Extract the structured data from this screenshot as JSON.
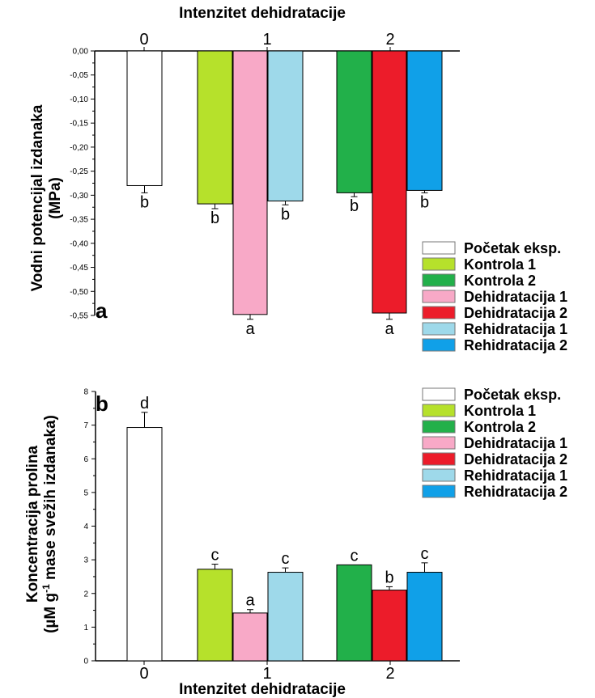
{
  "chart_data": [
    {
      "type": "bar",
      "panel_label": "a",
      "title": "Intenzitet dehidratacije",
      "xlabel": "Intenzitet dehidratacije",
      "ylabel_line1": "Vodni potencijal izdanaka",
      "ylabel_line2": "(MPa)",
      "categories": [
        "0",
        "1",
        "2"
      ],
      "ylim": [
        -0.55,
        0.0
      ],
      "yticks": [
        "0,00",
        "-0,05",
        "-0,10",
        "-0,15",
        "-0,20",
        "-0,25",
        "-0,30",
        "-0,35",
        "-0,40",
        "-0,45",
        "-0,50",
        "-0,55"
      ],
      "bars": [
        {
          "series": "Početak eksp.",
          "category": "0",
          "value": -0.28,
          "error": 0.015,
          "label": "b"
        },
        {
          "series": "Kontrola 1",
          "category": "1",
          "value": -0.318,
          "error": 0.01,
          "label": "b"
        },
        {
          "series": "Dehidratacija 1",
          "category": "1",
          "value": -0.548,
          "error": 0.01,
          "label": "a"
        },
        {
          "series": "Rehidratacija 1",
          "category": "1",
          "value": -0.312,
          "error": 0.008,
          "label": "b"
        },
        {
          "series": "Kontrola 2",
          "category": "2",
          "value": -0.295,
          "error": 0.008,
          "label": "b"
        },
        {
          "series": "Dehidratacija 2",
          "category": "2",
          "value": -0.545,
          "error": 0.013,
          "label": "a"
        },
        {
          "series": "Rehidratacija 2",
          "category": "2",
          "value": -0.29,
          "error": 0.005,
          "label": "b"
        }
      ]
    },
    {
      "type": "bar",
      "panel_label": "b",
      "xlabel": "Intenzitet dehidratacije",
      "ylabel_line1": "Koncentracija prolina",
      "ylabel_line2_pre": "(µM g",
      "ylabel_line2_sup": "-1",
      "ylabel_line2_post": " mase svežih izdanaka)",
      "categories": [
        "0",
        "1",
        "2"
      ],
      "ylim": [
        0,
        8
      ],
      "yticks": [
        "0",
        "1",
        "2",
        "3",
        "4",
        "5",
        "6",
        "7",
        "8"
      ],
      "bars": [
        {
          "series": "Početak eksp.",
          "category": "0",
          "value": 6.93,
          "error": 0.45,
          "label": "d"
        },
        {
          "series": "Kontrola 1",
          "category": "1",
          "value": 2.72,
          "error": 0.15,
          "label": "c"
        },
        {
          "series": "Dehidratacija 1",
          "category": "1",
          "value": 1.42,
          "error": 0.1,
          "label": "a"
        },
        {
          "series": "Rehidratacija 1",
          "category": "1",
          "value": 2.63,
          "error": 0.13,
          "label": "c"
        },
        {
          "series": "Kontrola 2",
          "category": "2",
          "value": 2.85,
          "error": 0.0,
          "label": "c"
        },
        {
          "series": "Dehidratacija 2",
          "category": "2",
          "value": 2.1,
          "error": 0.1,
          "label": "b"
        },
        {
          "series": "Rehidratacija 2",
          "category": "2",
          "value": 2.63,
          "error": 0.28,
          "label": "c"
        }
      ]
    }
  ],
  "legend": [
    {
      "name": "Početak eksp.",
      "color": "#ffffff"
    },
    {
      "name": "Kontrola 1",
      "color": "#b6e12b"
    },
    {
      "name": "Kontrola 2",
      "color": "#22b04a"
    },
    {
      "name": "Dehidratacija 1",
      "color": "#f8a9c7"
    },
    {
      "name": "Dehidratacija 2",
      "color": "#ec1c2a"
    },
    {
      "name": "Rehidratacija 1",
      "color": "#9ed9ea"
    },
    {
      "name": "Rehidratacija 2",
      "color": "#10a0e8"
    }
  ]
}
